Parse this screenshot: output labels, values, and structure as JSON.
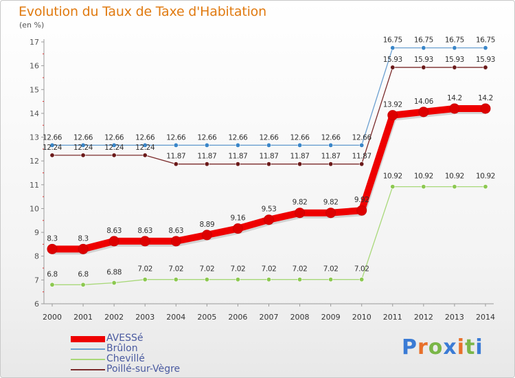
{
  "header": {
    "title": "Evolution du Taux de Taxe d'Habitation",
    "unit": "(en %)"
  },
  "brand": {
    "name": "Proxiti",
    "letters": [
      "P",
      "r",
      "o",
      "x",
      "i",
      "t",
      "i"
    ],
    "colors": [
      "#3a7bd5",
      "#e8702a",
      "#7ab648",
      "#3a7bd5",
      "#e8702a",
      "#7ab648",
      "#3a7bd5"
    ]
  },
  "chart_data": {
    "type": "line",
    "title": "Evolution du Taux de Taxe d'Habitation",
    "subtitle": "(en %)",
    "xlabel": "",
    "ylabel": "",
    "x": [
      "2000",
      "2001",
      "2002",
      "2003",
      "2004",
      "2005",
      "2006",
      "2007",
      "2008",
      "2009",
      "2010",
      "2011",
      "2012",
      "2013",
      "2014"
    ],
    "ylim": [
      6,
      17
    ],
    "yticks": [
      "6",
      "7",
      "8",
      "9",
      "10",
      "11",
      "12",
      "13",
      "14",
      "15",
      "16",
      "17"
    ],
    "grid": false,
    "legend_position": "bottom-left",
    "series": [
      {
        "name": "Brûlon",
        "color": "#6a9fd0",
        "marker_color": "#3a86c8",
        "values": [
          12.66,
          12.66,
          12.66,
          12.66,
          12.66,
          12.66,
          12.66,
          12.66,
          12.66,
          12.66,
          12.66,
          16.75,
          16.75,
          16.75,
          16.75
        ],
        "labels": [
          "12.66",
          "12.66",
          "12.66",
          "12.66",
          "12.66",
          "12.66",
          "12.66",
          "12.66",
          "12.66",
          "12.66",
          "12.66",
          "16.75",
          "16.75",
          "16.75",
          "16.75"
        ]
      },
      {
        "name": "Poillé-sur-Vègre",
        "color": "#7a2a2a",
        "marker_color": "#6b1a1a",
        "values": [
          12.24,
          12.24,
          12.24,
          12.24,
          11.87,
          11.87,
          11.87,
          11.87,
          11.87,
          11.87,
          11.87,
          15.93,
          15.93,
          15.93,
          15.93
        ],
        "labels": [
          "12.24",
          "12.24",
          "12.24",
          "12.24",
          "11.87",
          "11.87",
          "11.87",
          "11.87",
          "11.87",
          "11.87",
          "11.87",
          "15.93",
          "15.93",
          "15.93",
          "15.93"
        ]
      },
      {
        "name": "Chevillé",
        "color": "#a8d878",
        "marker_color": "#8cc850",
        "values": [
          6.8,
          6.8,
          6.88,
          7.02,
          7.02,
          7.02,
          7.02,
          7.02,
          7.02,
          7.02,
          7.02,
          10.92,
          10.92,
          10.92,
          10.92
        ],
        "labels": [
          "6.8",
          "6.8",
          "6.88",
          "7.02",
          "7.02",
          "7.02",
          "7.02",
          "7.02",
          "7.02",
          "7.02",
          "7.02",
          "10.92",
          "10.92",
          "10.92",
          "10.92"
        ]
      },
      {
        "name": "AVESSé",
        "color": "#ee0000",
        "marker_color": "#dd0000",
        "values": [
          8.3,
          8.3,
          8.63,
          8.63,
          8.63,
          8.89,
          9.16,
          9.53,
          9.82,
          9.82,
          9.92,
          13.92,
          14.06,
          14.2,
          14.2
        ],
        "labels": [
          "8.3",
          "8.3",
          "8.63",
          "8.63",
          "8.63",
          "8.89",
          "9.16",
          "9.53",
          "9.82",
          "9.82",
          "9.92",
          "13.92",
          "14.06",
          "14.2",
          "14.2"
        ]
      }
    ],
    "legend_order": [
      "AVESSé",
      "Brûlon",
      "Chevillé",
      "Poillé-sur-Vègre"
    ]
  }
}
